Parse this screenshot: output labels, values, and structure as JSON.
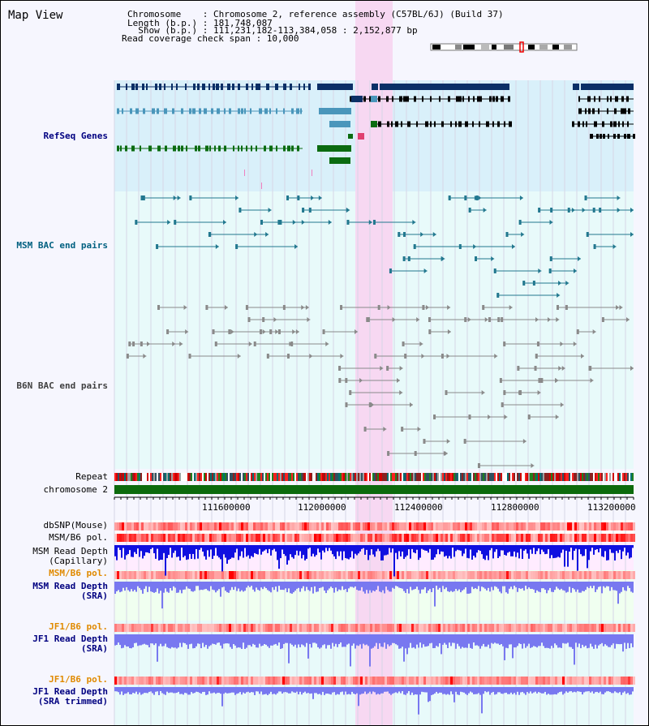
{
  "header": {
    "title": "Map View",
    "chromosome_line": "Chromosome    : Chromosome 2, reference assembly (C57BL/6J) (Build 37)",
    "length_line": "Length (b.p.) : 181,748,087",
    "show_line": "  Show (b.p.) : 111,231,182-113,384,058 : 2,152,877 bp",
    "coverage_line": "Read coverage check span : 10,000"
  },
  "tracks": {
    "refseq": "RefSeq Genes",
    "msm_bac": "MSM BAC end pairs",
    "b6n_bac": "B6N BAC end pairs",
    "repeat": "Repeat",
    "chromosome": "chromosome 2",
    "dbsnp": "dbSNP(Mouse)",
    "msm_b6_pol": "MSM/B6 pol.",
    "msm_depth_cap_1": "MSM Read Depth",
    "msm_depth_cap_2": "(Capillary)",
    "msm_b6_pol2": "MSM/B6 pol.",
    "msm_depth_sra_1": "MSM Read Depth",
    "msm_depth_sra_2": "(SRA)",
    "jf1_b6_pol": "JF1/B6 pol.",
    "jf1_depth_sra_1": "JF1 Read Depth",
    "jf1_depth_sra_2": "(SRA)",
    "jf1_b6_pol2": "JF1/B6 pol.",
    "jf1_depth_trim_1": "JF1 Read Depth",
    "jf1_depth_trim_2": "(SRA trimmed)"
  },
  "axis": {
    "ticks": [
      "111600000",
      "112000000",
      "112400000",
      "112800000",
      "113200000"
    ]
  },
  "colors": {
    "refseq_bg": "#d9f0fa",
    "bac_bg": "#e8fafa",
    "highlight": "#f7d8f2",
    "gene_navy": "#0a2f66",
    "gene_blue": "#4a96bb",
    "gene_green": "#0b6b10",
    "msm_line": "#22788f",
    "b6n_line": "#8a8a8a",
    "label_blue": "#000080",
    "label_teal": "#006080",
    "label_gray": "#404040",
    "label_orange": "#e08a00",
    "depth_dark": "#1010e0",
    "depth_light": "#7878f0",
    "pol_light": "#ffc8c8",
    "pol_dark": "#e80000"
  }
}
